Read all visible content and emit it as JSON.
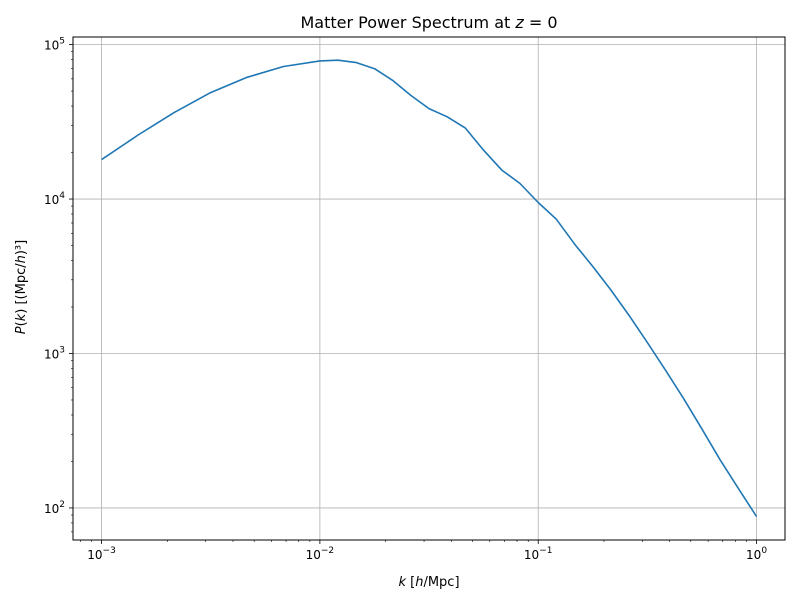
{
  "chart_data": {
    "type": "line",
    "title": "Matter Power Spectrum at z = 0",
    "title_parts": {
      "text": "Matter Power Spectrum at ",
      "var": "z",
      "rest": " = 0"
    },
    "xlabel": "k [h/Mpc]",
    "ylabel": "P(k) [(Mpc/h)³]",
    "xscale": "log",
    "yscale": "log",
    "xlim": [
      0.00074,
      1.35
    ],
    "ylim": [
      62,
      112000
    ],
    "grid": true,
    "color": "#1f77b4",
    "x_ticks": [
      {
        "value": 0.001,
        "base": "10",
        "exp": "−3"
      },
      {
        "value": 0.01,
        "base": "10",
        "exp": "−2"
      },
      {
        "value": 0.1,
        "base": "10",
        "exp": "−1"
      },
      {
        "value": 1,
        "base": "10",
        "exp": "0"
      }
    ],
    "y_ticks": [
      {
        "value": 100,
        "base": "10",
        "exp": "2"
      },
      {
        "value": 1000,
        "base": "10",
        "exp": "3"
      },
      {
        "value": 10000,
        "base": "10",
        "exp": "4"
      },
      {
        "value": 100000,
        "base": "10",
        "exp": "5"
      }
    ],
    "series": [
      {
        "x": [
          0.001,
          0.00147,
          0.00215,
          0.00316,
          0.00464,
          0.00681,
          0.01,
          0.0121,
          0.0147,
          0.0178,
          0.0215,
          0.0261,
          0.0316,
          0.0383,
          0.0464,
          0.0562,
          0.0681,
          0.0825,
          0.1,
          0.121,
          0.147,
          0.178,
          0.215,
          0.261,
          0.316,
          0.383,
          0.464,
          0.562,
          0.681,
          0.825,
          1.0
        ],
        "y": [
          18000,
          26000,
          36300,
          48900,
          61400,
          72100,
          78400,
          79200,
          76500,
          69800,
          58700,
          46900,
          38500,
          34100,
          28800,
          20700,
          15400,
          12600,
          9500,
          7400,
          5100,
          3650,
          2580,
          1760,
          1180,
          780,
          510,
          325,
          205,
          134,
          88
        ]
      }
    ]
  }
}
